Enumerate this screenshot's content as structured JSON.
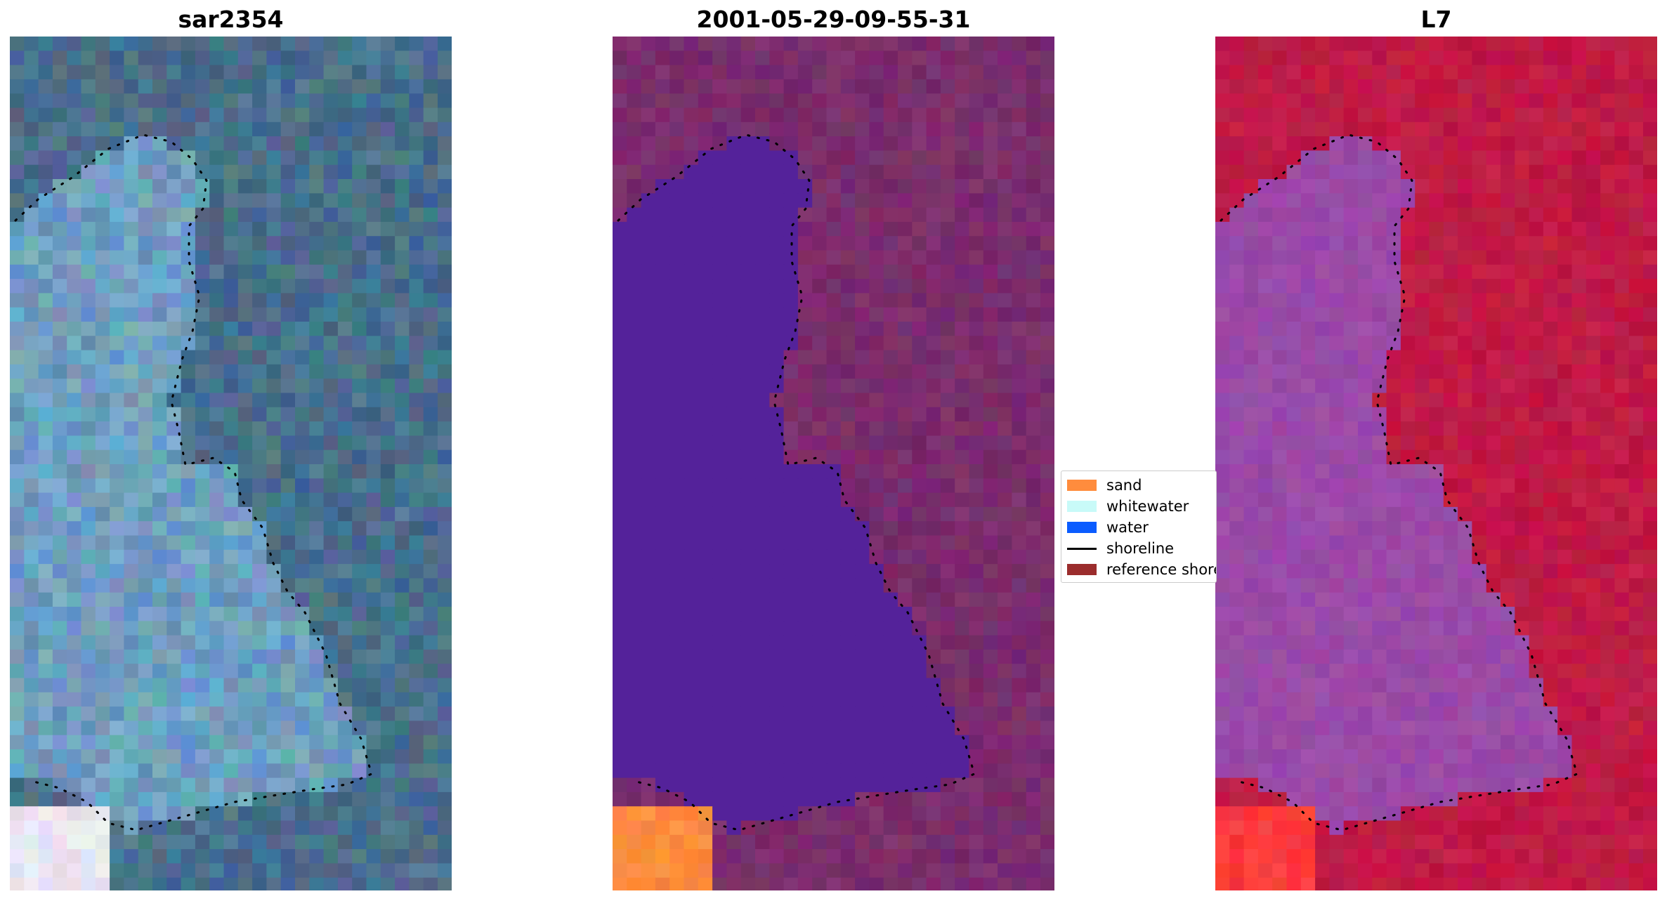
{
  "panels": [
    {
      "title": "sar2354",
      "kind": "sar"
    },
    {
      "title": "2001-05-29-09-55-31",
      "kind": "classified"
    },
    {
      "title": "L7",
      "kind": "index"
    }
  ],
  "legend": [
    {
      "label": "sand",
      "type": "patch",
      "color": "#ff8c3d"
    },
    {
      "label": "whitewater",
      "type": "patch",
      "color": "#c8faf8"
    },
    {
      "label": "water",
      "type": "patch",
      "color": "#0a5cff"
    },
    {
      "label": "shoreline",
      "type": "line",
      "color": "#000000"
    },
    {
      "label": "reference shoreline",
      "type": "patch",
      "color": "#9b2d2d"
    }
  ],
  "colors": {
    "sar_land": "#4a6f8c",
    "sar_water": "#6f9fc0",
    "sar_light": "#a9a9cc",
    "classified_land": "#7a2d6c",
    "classified_water": "#54229a",
    "index_land": "#c01a45",
    "index_water": "#9a4aa8"
  }
}
